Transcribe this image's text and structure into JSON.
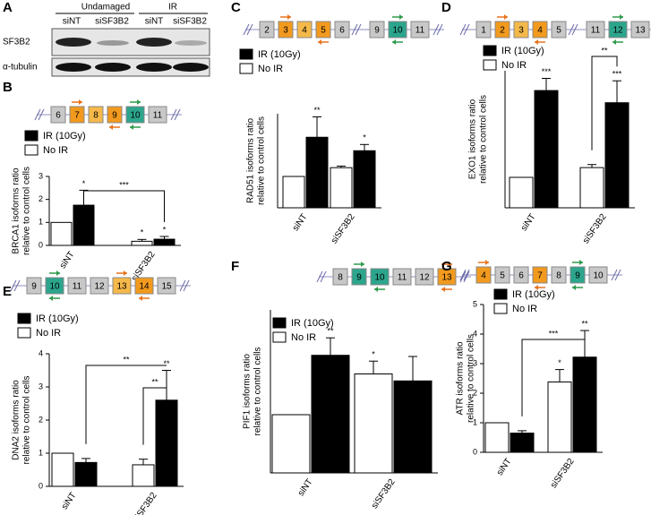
{
  "blot": {
    "panel": "A",
    "groups": [
      "Undamaged",
      "IR"
    ],
    "lanes": [
      "siNT",
      "siSF3B2",
      "siNT",
      "siSF3B2"
    ],
    "rows": [
      "SF3B2",
      "α-tubulin"
    ]
  },
  "chart_data": [
    {
      "type": "bar",
      "panel": "B",
      "exons": [
        [
          {
            "label": "6",
            "color": "#c8c8c8"
          },
          {
            "label": "7",
            "color": "#f29a1e"
          },
          {
            "label": "8",
            "color": "#f5b94a"
          },
          {
            "label": "9",
            "color": "#f29a1e"
          },
          {
            "label": "10",
            "color": "#2ca58d"
          },
          {
            "label": "11",
            "color": "#c8c8c8"
          }
        ]
      ],
      "ylabel": [
        "BRCA1 isoforms ratio",
        "relative to control cells"
      ],
      "categories": [
        "siNT",
        "siSF3B2"
      ],
      "ylim": [
        0,
        3
      ],
      "yticks": [
        0,
        1,
        2,
        3
      ],
      "series": [
        {
          "name": "IR (10Gy)",
          "color": "#000000",
          "values": [
            1.75,
            0.27
          ],
          "errors": [
            0.65,
            0.12
          ],
          "significance": [
            "*",
            "*"
          ]
        },
        {
          "name": "No IR",
          "color": "#ffffff",
          "values": [
            1.0,
            0.18
          ],
          "errors": [
            null,
            0.08
          ],
          "significance": [
            null,
            "*"
          ]
        }
      ],
      "brackets": [
        "***"
      ]
    },
    {
      "type": "bar",
      "panel": "C",
      "exons": [
        [
          {
            "label": "2",
            "color": "#c8c8c8"
          },
          {
            "label": "3",
            "color": "#f29a1e"
          },
          {
            "label": "4",
            "color": "#f5b94a"
          },
          {
            "label": "5",
            "color": "#f29a1e"
          },
          {
            "label": "6",
            "color": "#c8c8c8"
          }
        ],
        [
          {
            "label": "9",
            "color": "#c8c8c8"
          },
          {
            "label": "10",
            "color": "#2ca58d"
          },
          {
            "label": "11",
            "color": "#c8c8c8"
          }
        ]
      ],
      "ylabel": [
        "RAD51 isoforms ratio",
        "relative to control cells"
      ],
      "categories": [
        "siNT",
        "siSF3B2"
      ],
      "ylim": [
        0,
        3
      ],
      "series": [
        {
          "name": "IR (10Gy)",
          "color": "#000000",
          "values": [
            2.25,
            1.82
          ],
          "errors": [
            0.65,
            0.2
          ],
          "significance": [
            "**",
            "*"
          ]
        },
        {
          "name": "No IR",
          "color": "#ffffff",
          "values": [
            1.0,
            1.28
          ],
          "errors": [
            null,
            0.05
          ],
          "significance": [
            null,
            null
          ]
        }
      ]
    },
    {
      "type": "bar",
      "panel": "D",
      "exons": [
        [
          {
            "label": "1",
            "color": "#c8c8c8"
          },
          {
            "label": "2",
            "color": "#f29a1e"
          },
          {
            "label": "3",
            "color": "#f5b94a"
          },
          {
            "label": "4",
            "color": "#f29a1e"
          },
          {
            "label": "5",
            "color": "#c8c8c8"
          }
        ],
        [
          {
            "label": "11",
            "color": "#c8c8c8"
          },
          {
            "label": "12",
            "color": "#2ca58d"
          },
          {
            "label": "13",
            "color": "#c8c8c8"
          }
        ]
      ],
      "ylabel": [
        "EXO1 isoforms ratio",
        "relative to control cells"
      ],
      "categories": [
        "siNT",
        "siSF3B2"
      ],
      "ylim": [
        0,
        4.5
      ],
      "series": [
        {
          "name": "IR (10Gy)",
          "color": "#000000",
          "values": [
            3.85,
            3.45
          ],
          "errors": [
            0.4,
            0.72
          ],
          "significance": [
            "***",
            "***"
          ]
        },
        {
          "name": "No IR",
          "color": "#ffffff",
          "values": [
            1.0,
            1.32
          ],
          "errors": [
            null,
            0.1
          ],
          "significance": [
            null,
            null
          ]
        }
      ],
      "brackets": [
        "**"
      ]
    },
    {
      "type": "bar",
      "panel": "E",
      "exons": [
        [
          {
            "label": "9",
            "color": "#c8c8c8"
          },
          {
            "label": "10",
            "color": "#2ca58d"
          },
          {
            "label": "11",
            "color": "#c8c8c8"
          },
          {
            "label": "12",
            "color": "#c8c8c8"
          },
          {
            "label": "13",
            "color": "#f5b94a"
          },
          {
            "label": "14",
            "color": "#f29a1e"
          },
          {
            "label": "15",
            "color": "#c8c8c8"
          }
        ]
      ],
      "ylabel": [
        "DNA2 isoforms ratio",
        "relative to control cells"
      ],
      "categories": [
        "siNT",
        "siSF3B2"
      ],
      "ylim": [
        0,
        4
      ],
      "yticks": [
        0,
        1,
        2,
        3,
        4
      ],
      "series": [
        {
          "name": "IR (10Gy)",
          "color": "#000000",
          "values": [
            0.72,
            2.6
          ],
          "errors": [
            0.12,
            0.9
          ],
          "significance": [
            null,
            "**"
          ]
        },
        {
          "name": "No IR",
          "color": "#ffffff",
          "values": [
            1.0,
            0.65
          ],
          "errors": [
            null,
            0.17
          ],
          "significance": [
            null,
            null
          ]
        }
      ],
      "brackets": [
        "**",
        "**"
      ]
    },
    {
      "type": "bar",
      "panel": "F",
      "exons": [
        [
          {
            "label": "8",
            "color": "#c8c8c8"
          },
          {
            "label": "9",
            "color": "#2ca58d"
          },
          {
            "label": "10",
            "color": "#2ca58d"
          },
          {
            "label": "11",
            "color": "#c8c8c8"
          },
          {
            "label": "12",
            "color": "#c8c8c8"
          },
          {
            "label": "13",
            "color": "#f29a1e"
          }
        ]
      ],
      "ylabel": [
        "PIF1 isoforms ratio",
        "relative to control cells"
      ],
      "categories": [
        "siNT",
        "siSF3B2"
      ],
      "ylim": [
        0,
        2.8
      ],
      "series": [
        {
          "name": "IR (10Gy)",
          "color": "#000000",
          "values": [
            2.02,
            1.58
          ],
          "errors": [
            0.3,
            0.42
          ],
          "significance": [
            "**",
            null
          ]
        },
        {
          "name": "No IR",
          "color": "#ffffff",
          "values": [
            1.0,
            1.7
          ],
          "errors": [
            null,
            0.22
          ],
          "significance": [
            null,
            "*"
          ]
        }
      ]
    },
    {
      "type": "bar",
      "panel": "G",
      "exons": [
        [
          {
            "label": "4",
            "color": "#f29a1e"
          },
          {
            "label": "5",
            "color": "#c8c8c8"
          },
          {
            "label": "6",
            "color": "#c8c8c8"
          },
          {
            "label": "7",
            "color": "#f29a1e"
          },
          {
            "label": "8",
            "color": "#c8c8c8"
          },
          {
            "label": "9",
            "color": "#2ca58d"
          },
          {
            "label": "10",
            "color": "#c8c8c8"
          }
        ]
      ],
      "ylabel": [
        "ATR isoforms ratio",
        "relative to control cells"
      ],
      "categories": [
        "siNT",
        "siSF3B2"
      ],
      "ylim": [
        0,
        5
      ],
      "yticks": [
        0,
        1,
        2,
        3,
        4,
        5
      ],
      "series": [
        {
          "name": "IR (10Gy)",
          "color": "#000000",
          "values": [
            0.65,
            3.22
          ],
          "errors": [
            0.08,
            0.9
          ],
          "significance": [
            null,
            "**"
          ]
        },
        {
          "name": "No IR",
          "color": "#ffffff",
          "values": [
            1.0,
            2.38
          ],
          "errors": [
            null,
            0.42
          ],
          "significance": [
            null,
            "*"
          ]
        }
      ],
      "brackets": [
        "***"
      ]
    }
  ]
}
